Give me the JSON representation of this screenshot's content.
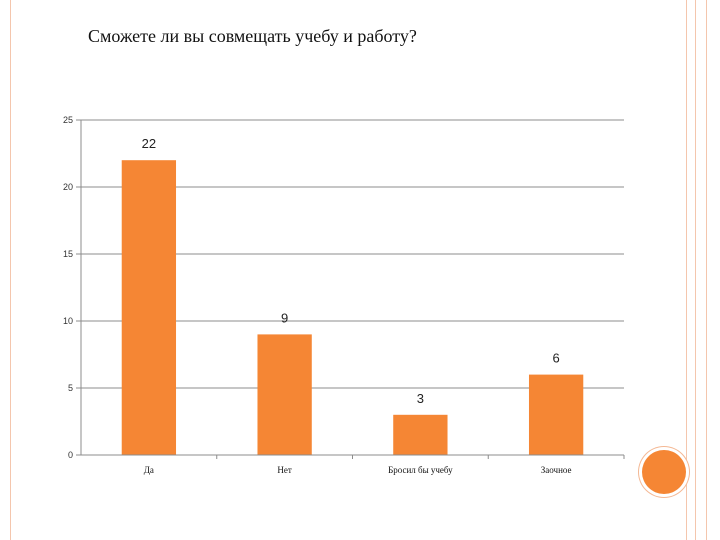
{
  "title": "Сможете ли вы совмещать учебу и работу?",
  "colors": {
    "bar": "#f58634",
    "frame": "#f4c6ad",
    "accent_circle": "#f58634"
  },
  "chart_data": {
    "type": "bar",
    "categories": [
      "Да",
      "Нет",
      "Бросил бы учебу",
      "Заочное"
    ],
    "values": [
      22,
      9,
      3,
      6
    ],
    "data_labels": [
      "22",
      "9",
      "3",
      "6"
    ],
    "ylim": [
      0,
      25
    ],
    "yticks": [
      0,
      5,
      10,
      15,
      20,
      25
    ],
    "grid": true,
    "legend": "none",
    "xlabel": "",
    "ylabel": ""
  }
}
